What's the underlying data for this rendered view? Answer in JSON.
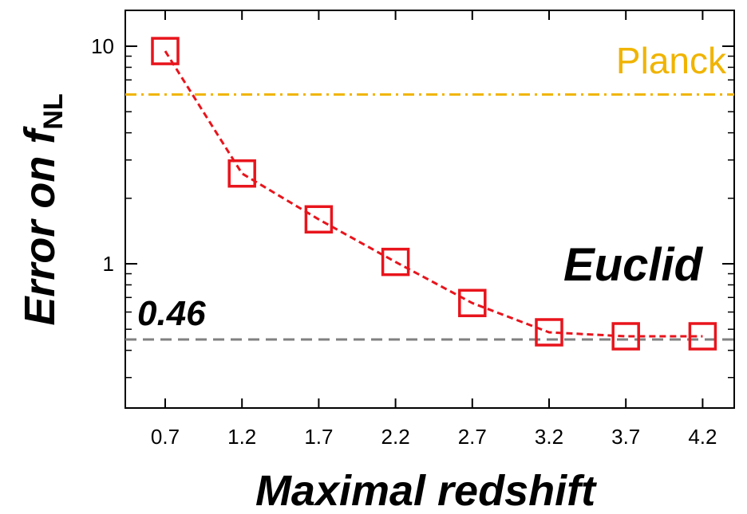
{
  "chart_data": {
    "type": "line",
    "xlabel": "Maximal redshift",
    "ylabel": {
      "main": "Error on ",
      "f": "f",
      "sub": "NL"
    },
    "x": [
      "0.7",
      "1.2",
      "1.7",
      "2.2",
      "2.7",
      "3.2",
      "3.7",
      "4.2"
    ],
    "y": [
      9.5,
      2.6,
      1.6,
      1.02,
      0.66,
      0.48,
      0.46,
      0.46
    ],
    "yscale": "log",
    "ylim": [
      0.2,
      15
    ],
    "yticks": [
      1,
      10
    ],
    "ytick_labels": [
      "1",
      "10"
    ],
    "series": [
      {
        "values": [
          9.5,
          2.6,
          1.6,
          1.02,
          0.66,
          0.48,
          0.46,
          0.46
        ],
        "color": "#e8141c",
        "marker": "open-square",
        "linestyle": "dashed"
      }
    ],
    "reference_lines": [
      {
        "label": "Planck",
        "value": 6,
        "color": "#f0b400",
        "linestyle": "dash-dot"
      },
      {
        "label": "0.46",
        "value": 0.46,
        "color": "#808080",
        "linestyle": "dashed"
      }
    ],
    "annotations": [
      "Euclid"
    ],
    "grid": false
  }
}
